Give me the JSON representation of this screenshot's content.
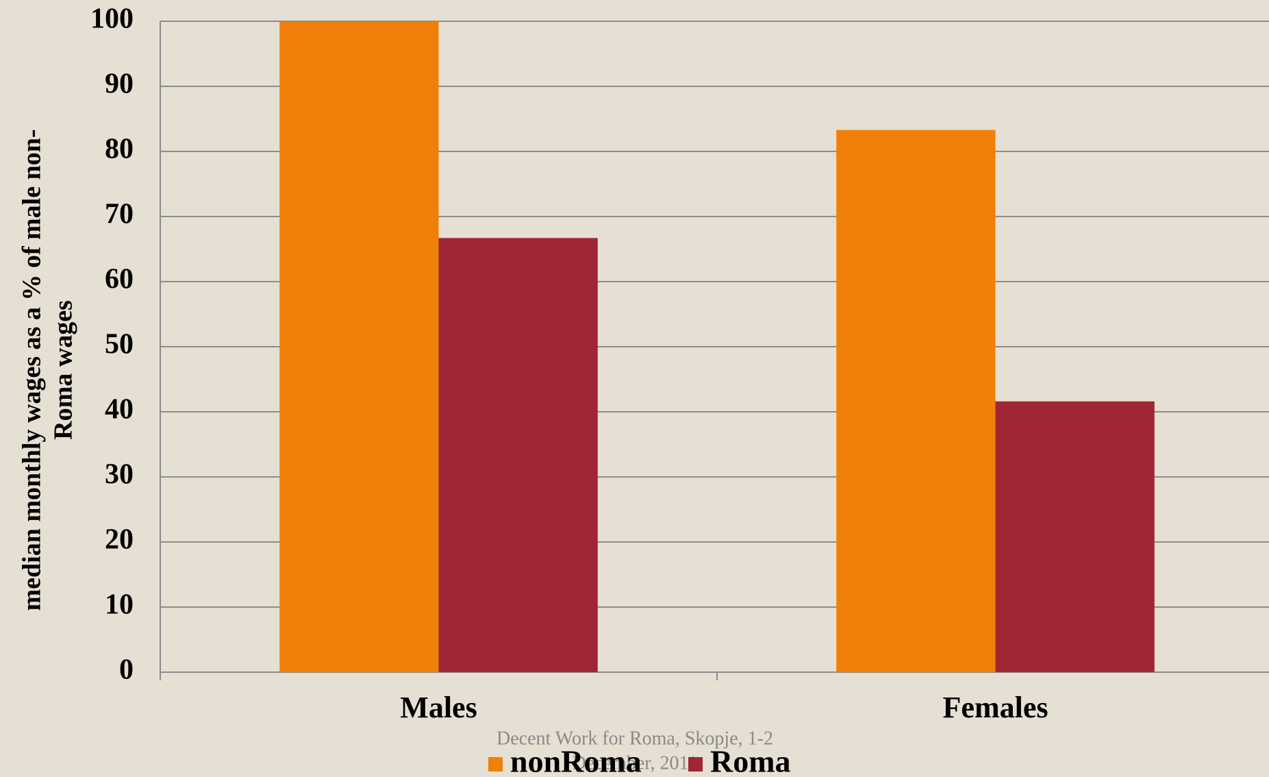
{
  "chart_data": {
    "type": "bar",
    "ylabel": [
      "median monthly wages as a % of male non-",
      "Roma wages"
    ],
    "categories": [
      "Males",
      "Females"
    ],
    "series": [
      {
        "name": "nonRoma",
        "color": "#f0800a",
        "values": [
          100,
          83.3
        ]
      },
      {
        "name": "Roma",
        "color": "#a02636",
        "values": [
          66.7,
          41.6
        ]
      }
    ],
    "ylim": [
      0,
      100
    ],
    "yticks": [
      0,
      10,
      20,
      30,
      40,
      50,
      60,
      70,
      80,
      90,
      100
    ],
    "grid": true,
    "legend": "bottom",
    "footer": [
      "Decent Work for Roma, Skopje, 1-2",
      "December, 2011"
    ]
  }
}
